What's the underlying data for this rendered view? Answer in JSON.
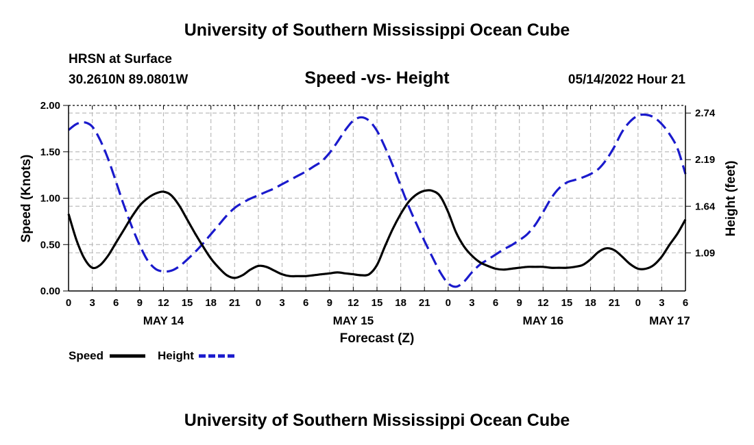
{
  "header": {
    "title": "University of Southern Mississippi Ocean Cube",
    "station": "HRSN at Surface",
    "coords": "30.2610N  89.0801W",
    "chart_title": "Speed -vs- Height",
    "datetime": "05/14/2022 Hour 21"
  },
  "footer": {
    "title": "University of Southern Mississippi Ocean Cube"
  },
  "colors": {
    "speed": "#000000",
    "height": "#1a1acc",
    "grid": "#bbbbbb"
  },
  "chart_data": {
    "type": "line",
    "title": "Speed -vs- Height",
    "xlabel": "Forecast (Z)",
    "ylabel": "Speed (Knots)",
    "y2label": "Height (feet)",
    "x_range_hours": [
      0,
      78
    ],
    "ylim": [
      0,
      2
    ],
    "y_ticks": [
      "0.00",
      "0.50",
      "1.00",
      "1.50",
      "2.00"
    ],
    "y_tick_values": [
      0,
      0.5,
      1,
      1.5,
      2
    ],
    "y2_ticks": [
      "1.09",
      "1.64",
      "2.19",
      "2.74"
    ],
    "y2_tick_values": [
      1.09,
      1.64,
      2.19,
      2.74
    ],
    "y2lim": [
      0.64,
      2.83
    ],
    "x_tick_labels": [
      "0",
      "3",
      "6",
      "9",
      "12",
      "15",
      "18",
      "21",
      "0",
      "3",
      "6",
      "9",
      "12",
      "15",
      "18",
      "21",
      "0",
      "3",
      "6",
      "9",
      "12",
      "15",
      "18",
      "21",
      "0",
      "3",
      "6"
    ],
    "date_labels": [
      {
        "label": "MAY 14",
        "hour": 12
      },
      {
        "label": "MAY 15",
        "hour": 36
      },
      {
        "label": "MAY 16",
        "hour": 60
      },
      {
        "label": "MAY 17",
        "hour": 76
      }
    ],
    "legend": [
      {
        "name": "Speed",
        "style": "solid"
      },
      {
        "name": "Height",
        "style": "dashed"
      }
    ],
    "series": [
      {
        "name": "Speed",
        "x": [
          0,
          1,
          2,
          3,
          4,
          5,
          6,
          7,
          8,
          9,
          10,
          11,
          12,
          13,
          14,
          15,
          16,
          17,
          18,
          19,
          20,
          21,
          22,
          23,
          24,
          25,
          26,
          27,
          28,
          29,
          30,
          31,
          32,
          33,
          34,
          35,
          36,
          37,
          38,
          39,
          40,
          41,
          42,
          43,
          44,
          45,
          46,
          47,
          48,
          49,
          50,
          51,
          52,
          53,
          54,
          55,
          56,
          57,
          58,
          59,
          60,
          61,
          62,
          63,
          64,
          65,
          66,
          67,
          68,
          69,
          70,
          71,
          72,
          73,
          74,
          75,
          76,
          77,
          78
        ],
        "values": [
          0.83,
          0.55,
          0.35,
          0.25,
          0.28,
          0.38,
          0.52,
          0.66,
          0.8,
          0.92,
          1.0,
          1.05,
          1.07,
          1.03,
          0.92,
          0.77,
          0.62,
          0.48,
          0.35,
          0.25,
          0.17,
          0.14,
          0.17,
          0.23,
          0.27,
          0.26,
          0.22,
          0.18,
          0.16,
          0.16,
          0.16,
          0.17,
          0.18,
          0.19,
          0.2,
          0.19,
          0.18,
          0.17,
          0.18,
          0.28,
          0.48,
          0.67,
          0.83,
          0.96,
          1.04,
          1.08,
          1.08,
          1.02,
          0.85,
          0.63,
          0.48,
          0.38,
          0.31,
          0.27,
          0.24,
          0.23,
          0.24,
          0.25,
          0.26,
          0.26,
          0.26,
          0.25,
          0.25,
          0.25,
          0.26,
          0.28,
          0.34,
          0.42,
          0.46,
          0.44,
          0.37,
          0.29,
          0.24,
          0.24,
          0.28,
          0.37,
          0.5,
          0.62,
          0.77
        ]
      },
      {
        "name": "Height",
        "x": [
          0,
          1,
          2,
          3,
          4,
          5,
          6,
          7,
          8,
          9,
          10,
          11,
          12,
          13,
          14,
          15,
          16,
          17,
          18,
          19,
          20,
          21,
          22,
          23,
          24,
          25,
          26,
          27,
          28,
          29,
          30,
          31,
          32,
          33,
          34,
          35,
          36,
          37,
          38,
          39,
          40,
          41,
          42,
          43,
          44,
          45,
          46,
          47,
          48,
          49,
          50,
          51,
          52,
          53,
          54,
          55,
          56,
          57,
          58,
          59,
          60,
          61,
          62,
          63,
          64,
          65,
          66,
          67,
          68,
          69,
          70,
          71,
          72,
          73,
          74,
          75,
          76,
          77,
          78
        ],
        "values": [
          2.54,
          2.61,
          2.63,
          2.58,
          2.42,
          2.2,
          1.93,
          1.65,
          1.4,
          1.18,
          1.0,
          0.9,
          0.87,
          0.88,
          0.93,
          1.01,
          1.1,
          1.2,
          1.31,
          1.42,
          1.53,
          1.62,
          1.68,
          1.73,
          1.77,
          1.81,
          1.85,
          1.9,
          1.95,
          2.0,
          2.05,
          2.11,
          2.17,
          2.27,
          2.4,
          2.54,
          2.65,
          2.69,
          2.65,
          2.53,
          2.34,
          2.12,
          1.88,
          1.64,
          1.43,
          1.23,
          1.04,
          0.86,
          0.73,
          0.69,
          0.75,
          0.86,
          0.95,
          1.01,
          1.07,
          1.13,
          1.18,
          1.24,
          1.31,
          1.42,
          1.57,
          1.73,
          1.85,
          1.92,
          1.95,
          1.98,
          2.02,
          2.08,
          2.19,
          2.34,
          2.52,
          2.64,
          2.71,
          2.72,
          2.69,
          2.61,
          2.49,
          2.32,
          2.02
        ]
      }
    ]
  }
}
